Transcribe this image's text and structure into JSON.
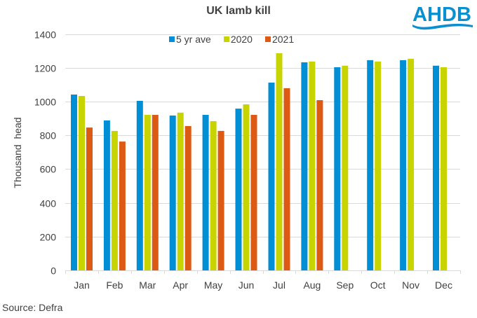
{
  "brand": {
    "logo_text": "AHDB",
    "logo_color": "#0088cc"
  },
  "source": "Source: Defra",
  "chart_data": {
    "type": "bar",
    "title": "UK lamb kill",
    "xlabel": "",
    "ylabel": "Thousand  head",
    "ylim": [
      0,
      1400
    ],
    "yticks": [
      0,
      200,
      400,
      600,
      800,
      1000,
      1200,
      1400
    ],
    "grid": true,
    "legend_position": "top",
    "categories": [
      "Jan",
      "Feb",
      "Mar",
      "Apr",
      "May",
      "Jun",
      "Jul",
      "Aug",
      "Sep",
      "Oct",
      "Nov",
      "Dec"
    ],
    "series": [
      {
        "name": "5 yr ave",
        "color": "#008fd5",
        "values": [
          1041,
          888,
          1004,
          917,
          921,
          958,
          1112,
          1232,
          1203,
          1245,
          1245,
          1212
        ]
      },
      {
        "name": "2020",
        "color": "#c8d400",
        "values": [
          1033,
          826,
          921,
          934,
          884,
          983,
          1286,
          1237,
          1212,
          1237,
          1253,
          1203
        ]
      },
      {
        "name": "2021",
        "color": "#dc5a14",
        "values": [
          846,
          763,
          921,
          855,
          826,
          921,
          1079,
          1008,
          null,
          null,
          null,
          null
        ]
      }
    ]
  }
}
